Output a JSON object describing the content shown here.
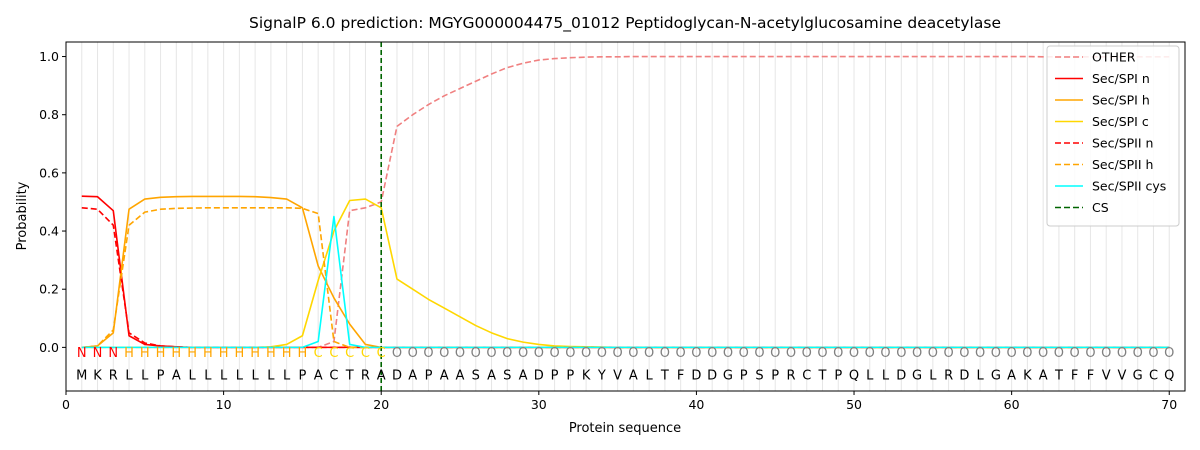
{
  "chart_data": {
    "type": "line",
    "title": "SignalP 6.0 prediction: MGYG000004475_01012 Peptidoglycan-N-acetylglucosamine deacetylase",
    "xlabel": "Protein sequence",
    "ylabel": "Probability",
    "xlim": [
      0,
      71
    ],
    "ylim": [
      -0.15,
      1.05
    ],
    "xticks": [
      0,
      10,
      20,
      30,
      40,
      50,
      60,
      70
    ],
    "yticks": [
      0.0,
      0.2,
      0.4,
      0.6,
      0.8,
      1.0
    ],
    "x": [
      1,
      2,
      3,
      4,
      5,
      6,
      7,
      8,
      9,
      10,
      11,
      12,
      13,
      14,
      15,
      16,
      17,
      18,
      19,
      20,
      21,
      22,
      23,
      24,
      25,
      26,
      27,
      28,
      29,
      30,
      31,
      32,
      33,
      34,
      35,
      36,
      37,
      38,
      39,
      40,
      41,
      42,
      43,
      44,
      45,
      46,
      47,
      48,
      49,
      50,
      51,
      52,
      53,
      54,
      55,
      56,
      57,
      58,
      59,
      60,
      61,
      62,
      63,
      64,
      65,
      66,
      67,
      68,
      69,
      70
    ],
    "sequence": [
      "M",
      "K",
      "R",
      "L",
      "L",
      "P",
      "A",
      "L",
      "L",
      "L",
      "L",
      "L",
      "L",
      "L",
      "P",
      "A",
      "C",
      "T",
      "R",
      "A",
      "D",
      "A",
      "P",
      "A",
      "A",
      "S",
      "A",
      "S",
      "A",
      "D",
      "P",
      "P",
      "K",
      "Y",
      "V",
      "A",
      "L",
      "T",
      "F",
      "D",
      "D",
      "G",
      "P",
      "S",
      "P",
      "R",
      "C",
      "T",
      "P",
      "Q",
      "L",
      "L",
      "D",
      "G",
      "L",
      "R",
      "D",
      "L",
      "G",
      "A",
      "K",
      "A",
      "T",
      "F",
      "F",
      "V",
      "V",
      "G",
      "C",
      "Q"
    ],
    "region_labels": [
      "N",
      "N",
      "N",
      "H",
      "H",
      "H",
      "H",
      "H",
      "H",
      "H",
      "H",
      "H",
      "H",
      "H",
      "H",
      "C",
      "C",
      "C",
      "C",
      "C",
      "O",
      "O",
      "O",
      "O",
      "O",
      "O",
      "O",
      "O",
      "O",
      "O",
      "O",
      "O",
      "O",
      "O",
      "O",
      "O",
      "O",
      "O",
      "O",
      "O",
      "O",
      "O",
      "O",
      "O",
      "O",
      "O",
      "O",
      "O",
      "O",
      "O",
      "O",
      "O",
      "O",
      "O",
      "O",
      "O",
      "O",
      "O",
      "O",
      "O",
      "O",
      "O",
      "O",
      "O",
      "O",
      "O",
      "O",
      "O",
      "O",
      "O"
    ],
    "region_colors": {
      "N": "#ff0000",
      "H": "#ffa500",
      "C": "#ffd700",
      "O": "#808080"
    },
    "cleavage_site": 20,
    "legend_position": "upper right",
    "grid": "vertical lines at every residue",
    "series": [
      {
        "name": "OTHER",
        "color": "#f08080",
        "dash": "dashed",
        "values": [
          0.0,
          0.0,
          0.0,
          0.0,
          0.0,
          0.0,
          0.0,
          0.0,
          0.0,
          0.0,
          0.0,
          0.0,
          0.0,
          0.0,
          0.0,
          0.0,
          0.02,
          0.47,
          0.48,
          0.5,
          0.76,
          0.8,
          0.835,
          0.865,
          0.89,
          0.915,
          0.94,
          0.962,
          0.977,
          0.988,
          0.993,
          0.996,
          0.998,
          0.999,
          0.999,
          1.0,
          1.0,
          1.0,
          1.0,
          1.0,
          1.0,
          1.0,
          1.0,
          1.0,
          1.0,
          1.0,
          1.0,
          1.0,
          1.0,
          1.0,
          1.0,
          1.0,
          1.0,
          1.0,
          1.0,
          1.0,
          1.0,
          1.0,
          1.0,
          1.0,
          1.0,
          0.999,
          0.999,
          0.999,
          0.999,
          0.999,
          0.999,
          0.999,
          0.999,
          0.999
        ]
      },
      {
        "name": "Sec/SPI n",
        "color": "#ff0000",
        "dash": "solid",
        "values": [
          0.52,
          0.518,
          0.47,
          0.04,
          0.01,
          0.005,
          0.002,
          0.0,
          0.0,
          0.0,
          0.0,
          0.0,
          0.0,
          0.0,
          0.0,
          0.0,
          0.0,
          0.0,
          0.0,
          0.0,
          0.0,
          0.0,
          0.0,
          0.0,
          0.0,
          0.0,
          0.0,
          0.0,
          0.0,
          0.0,
          0.0,
          0.0,
          0.0,
          0.0,
          0.0,
          0.0,
          0.0,
          0.0,
          0.0,
          0.0,
          0.0,
          0.0,
          0.0,
          0.0,
          0.0,
          0.0,
          0.0,
          0.0,
          0.0,
          0.0,
          0.0,
          0.0,
          0.0,
          0.0,
          0.0,
          0.0,
          0.0,
          0.0,
          0.0,
          0.0,
          0.0,
          0.0,
          0.0,
          0.0,
          0.0,
          0.0,
          0.0,
          0.0,
          0.0,
          0.0
        ]
      },
      {
        "name": "Sec/SPI h",
        "color": "#ffa500",
        "dash": "solid",
        "values": [
          0.0,
          0.005,
          0.05,
          0.475,
          0.51,
          0.516,
          0.518,
          0.519,
          0.519,
          0.519,
          0.519,
          0.518,
          0.515,
          0.51,
          0.48,
          0.28,
          0.17,
          0.08,
          0.01,
          0.0,
          0.0,
          0.0,
          0.0,
          0.0,
          0.0,
          0.0,
          0.0,
          0.0,
          0.0,
          0.0,
          0.0,
          0.0,
          0.0,
          0.0,
          0.0,
          0.0,
          0.0,
          0.0,
          0.0,
          0.0,
          0.0,
          0.0,
          0.0,
          0.0,
          0.0,
          0.0,
          0.0,
          0.0,
          0.0,
          0.0,
          0.0,
          0.0,
          0.0,
          0.0,
          0.0,
          0.0,
          0.0,
          0.0,
          0.0,
          0.0,
          0.0,
          0.0,
          0.0,
          0.0,
          0.0,
          0.0,
          0.0,
          0.0,
          0.0,
          0.0
        ]
      },
      {
        "name": "Sec/SPI c",
        "color": "#ffd700",
        "dash": "solid",
        "values": [
          0.0,
          0.0,
          0.0,
          0.0,
          0.0,
          0.0,
          0.0,
          0.0,
          0.0,
          0.0,
          0.0,
          0.0,
          0.002,
          0.01,
          0.04,
          0.23,
          0.4,
          0.505,
          0.51,
          0.48,
          0.235,
          0.2,
          0.165,
          0.135,
          0.105,
          0.075,
          0.05,
          0.03,
          0.018,
          0.01,
          0.005,
          0.003,
          0.002,
          0.001,
          0.0,
          0.0,
          0.0,
          0.0,
          0.0,
          0.0,
          0.0,
          0.0,
          0.0,
          0.0,
          0.0,
          0.0,
          0.0,
          0.0,
          0.0,
          0.0,
          0.0,
          0.0,
          0.0,
          0.0,
          0.0,
          0.0,
          0.0,
          0.0,
          0.0,
          0.0,
          0.0,
          0.0,
          0.0,
          0.0,
          0.0,
          0.0,
          0.0,
          0.0,
          0.0,
          0.0
        ]
      },
      {
        "name": "Sec/SPII n",
        "color": "#ff0000",
        "dash": "dashed",
        "values": [
          0.48,
          0.475,
          0.42,
          0.05,
          0.015,
          0.005,
          0.002,
          0.0,
          0.0,
          0.0,
          0.0,
          0.0,
          0.0,
          0.0,
          0.0,
          0.0,
          0.0,
          0.0,
          0.0,
          0.0,
          0.0,
          0.0,
          0.0,
          0.0,
          0.0,
          0.0,
          0.0,
          0.0,
          0.0,
          0.0,
          0.0,
          0.0,
          0.0,
          0.0,
          0.0,
          0.0,
          0.0,
          0.0,
          0.0,
          0.0,
          0.0,
          0.0,
          0.0,
          0.0,
          0.0,
          0.0,
          0.0,
          0.0,
          0.0,
          0.0,
          0.0,
          0.0,
          0.0,
          0.0,
          0.0,
          0.0,
          0.0,
          0.0,
          0.0,
          0.0,
          0.0,
          0.0,
          0.0,
          0.0,
          0.0,
          0.0,
          0.0,
          0.0,
          0.0,
          0.0
        ]
      },
      {
        "name": "Sec/SPII h",
        "color": "#ffa500",
        "dash": "dashed",
        "values": [
          0.0,
          0.005,
          0.06,
          0.42,
          0.465,
          0.475,
          0.478,
          0.479,
          0.48,
          0.48,
          0.48,
          0.48,
          0.48,
          0.48,
          0.478,
          0.46,
          0.02,
          0.0,
          0.0,
          0.0,
          0.0,
          0.0,
          0.0,
          0.0,
          0.0,
          0.0,
          0.0,
          0.0,
          0.0,
          0.0,
          0.0,
          0.0,
          0.0,
          0.0,
          0.0,
          0.0,
          0.0,
          0.0,
          0.0,
          0.0,
          0.0,
          0.0,
          0.0,
          0.0,
          0.0,
          0.0,
          0.0,
          0.0,
          0.0,
          0.0,
          0.0,
          0.0,
          0.0,
          0.0,
          0.0,
          0.0,
          0.0,
          0.0,
          0.0,
          0.0,
          0.0,
          0.0,
          0.0,
          0.0,
          0.0,
          0.0,
          0.0,
          0.0,
          0.0,
          0.0
        ]
      },
      {
        "name": "Sec/SPII cys",
        "color": "#00ffff",
        "dash": "solid",
        "values": [
          0.0,
          0.0,
          0.0,
          0.0,
          0.0,
          0.0,
          0.0,
          0.0,
          0.0,
          0.0,
          0.0,
          0.0,
          0.0,
          0.0,
          0.0,
          0.02,
          0.45,
          0.01,
          0.0,
          0.0,
          0.0,
          0.0,
          0.0,
          0.0,
          0.0,
          0.0,
          0.0,
          0.0,
          0.0,
          0.0,
          0.0,
          0.0,
          0.0,
          0.0,
          0.0,
          0.0,
          0.0,
          0.0,
          0.0,
          0.0,
          0.0,
          0.0,
          0.0,
          0.0,
          0.0,
          0.0,
          0.0,
          0.0,
          0.0,
          0.0,
          0.0,
          0.0,
          0.0,
          0.0,
          0.0,
          0.0,
          0.0,
          0.0,
          0.0,
          0.0,
          0.0,
          0.0,
          0.0,
          0.0,
          0.0,
          0.0,
          0.0,
          0.0,
          0.0,
          0.0
        ]
      }
    ],
    "legend": [
      {
        "name": "OTHER",
        "color": "#f08080",
        "dash": "dashed"
      },
      {
        "name": "Sec/SPI n",
        "color": "#ff0000",
        "dash": "solid"
      },
      {
        "name": "Sec/SPI h",
        "color": "#ffa500",
        "dash": "solid"
      },
      {
        "name": "Sec/SPI c",
        "color": "#ffd700",
        "dash": "solid"
      },
      {
        "name": "Sec/SPII n",
        "color": "#ff0000",
        "dash": "dashed"
      },
      {
        "name": "Sec/SPII h",
        "color": "#ffa500",
        "dash": "dashed"
      },
      {
        "name": "Sec/SPII cys",
        "color": "#00ffff",
        "dash": "solid"
      },
      {
        "name": "CS",
        "color": "#006400",
        "dash": "dashed"
      }
    ]
  }
}
